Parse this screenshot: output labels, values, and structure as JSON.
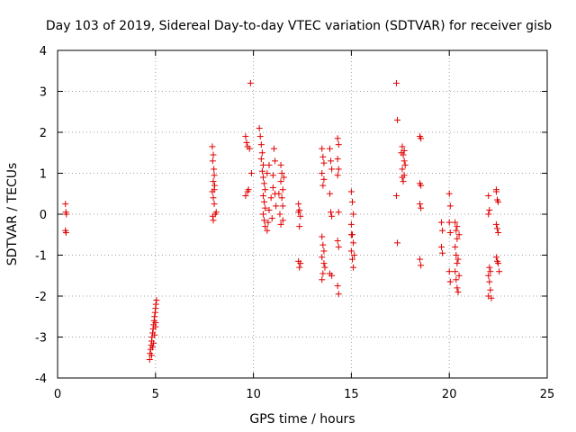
{
  "chart_data": {
    "type": "scatter",
    "title": "Day 103 of 2019, Sidereal Day-to-day VTEC variation (SDTVAR) for receiver gisb",
    "xlabel": "GPS time / hours",
    "ylabel": "SDTVAR / TECUs",
    "xlim": [
      0,
      25
    ],
    "ylim": [
      -4,
      4
    ],
    "xticks": [
      0,
      5,
      10,
      15,
      20,
      25
    ],
    "yticks": [
      -4,
      -3,
      -2,
      -1,
      0,
      1,
      2,
      3,
      4
    ],
    "grid": true,
    "marker": "+",
    "colors": {
      "points": "#e00000",
      "axis": "#000000",
      "grid": "#a0a0a0"
    },
    "series": [
      {
        "name": "SDTVAR",
        "points": [
          [
            0.4,
            0.25
          ],
          [
            0.42,
            0.05
          ],
          [
            0.45,
            0.0
          ],
          [
            0.4,
            -0.4
          ],
          [
            0.43,
            -0.45
          ],
          [
            4.7,
            -3.55
          ],
          [
            4.72,
            -3.4
          ],
          [
            4.75,
            -3.3
          ],
          [
            4.78,
            -3.2
          ],
          [
            4.8,
            -3.1
          ],
          [
            4.82,
            -3.0
          ],
          [
            4.85,
            -2.9
          ],
          [
            4.88,
            -2.8
          ],
          [
            4.9,
            -2.7
          ],
          [
            4.93,
            -2.6
          ],
          [
            4.95,
            -2.5
          ],
          [
            4.98,
            -2.4
          ],
          [
            5.0,
            -2.3
          ],
          [
            5.02,
            -2.2
          ],
          [
            5.05,
            -2.1
          ],
          [
            4.85,
            -3.25
          ],
          [
            4.9,
            -3.15
          ],
          [
            4.95,
            -2.95
          ],
          [
            5.0,
            -2.65
          ],
          [
            4.8,
            -3.45
          ],
          [
            5.0,
            -2.75
          ],
          [
            7.9,
            1.65
          ],
          [
            7.95,
            1.45
          ],
          [
            7.92,
            1.3
          ],
          [
            7.98,
            1.1
          ],
          [
            8.0,
            0.95
          ],
          [
            7.95,
            0.8
          ],
          [
            8.02,
            0.7
          ],
          [
            7.9,
            0.55
          ],
          [
            7.95,
            0.4
          ],
          [
            8.0,
            0.25
          ],
          [
            8.05,
            0.0
          ],
          [
            7.92,
            -0.05
          ],
          [
            7.95,
            -0.15
          ],
          [
            8.1,
            0.05
          ],
          [
            8.0,
            0.6
          ],
          [
            9.6,
            1.9
          ],
          [
            9.65,
            1.75
          ],
          [
            9.7,
            1.65
          ],
          [
            9.8,
            1.6
          ],
          [
            9.85,
            3.2
          ],
          [
            9.9,
            1.0
          ],
          [
            9.7,
            0.55
          ],
          [
            9.6,
            0.45
          ],
          [
            9.75,
            0.6
          ],
          [
            10.3,
            2.1
          ],
          [
            10.35,
            1.9
          ],
          [
            10.4,
            1.7
          ],
          [
            10.45,
            1.5
          ],
          [
            10.4,
            1.35
          ],
          [
            10.5,
            1.2
          ],
          [
            10.45,
            1.05
          ],
          [
            10.5,
            0.9
          ],
          [
            10.55,
            0.75
          ],
          [
            10.6,
            0.6
          ],
          [
            10.5,
            0.45
          ],
          [
            10.55,
            0.3
          ],
          [
            10.6,
            0.15
          ],
          [
            10.5,
            0.0
          ],
          [
            10.55,
            -0.15
          ],
          [
            10.6,
            -0.3
          ],
          [
            10.7,
            -0.4
          ],
          [
            10.75,
            -0.2
          ],
          [
            10.8,
            0.1
          ],
          [
            10.9,
            0.4
          ],
          [
            11.0,
            0.65
          ],
          [
            11.05,
            1.6
          ],
          [
            11.1,
            1.3
          ],
          [
            11.0,
            0.95
          ],
          [
            11.1,
            0.5
          ],
          [
            11.15,
            0.2
          ],
          [
            10.95,
            -0.1
          ],
          [
            10.8,
            1.2
          ],
          [
            10.7,
            1.0
          ],
          [
            11.4,
            1.2
          ],
          [
            11.45,
            1.0
          ],
          [
            11.4,
            0.8
          ],
          [
            11.5,
            0.6
          ],
          [
            11.45,
            0.4
          ],
          [
            11.5,
            0.2
          ],
          [
            11.35,
            0.0
          ],
          [
            11.5,
            -0.15
          ],
          [
            11.4,
            -0.25
          ],
          [
            11.3,
            0.5
          ],
          [
            11.55,
            0.9
          ],
          [
            12.3,
            0.25
          ],
          [
            12.35,
            0.1
          ],
          [
            12.3,
            0.05
          ],
          [
            12.4,
            -0.05
          ],
          [
            12.35,
            -0.3
          ],
          [
            12.3,
            -1.15
          ],
          [
            12.35,
            -1.3
          ],
          [
            12.4,
            -1.2
          ],
          [
            13.5,
            1.6
          ],
          [
            13.55,
            1.4
          ],
          [
            13.6,
            1.25
          ],
          [
            13.5,
            1.0
          ],
          [
            13.6,
            0.85
          ],
          [
            13.55,
            0.7
          ],
          [
            13.5,
            -0.55
          ],
          [
            13.55,
            -0.75
          ],
          [
            13.6,
            -0.9
          ],
          [
            13.5,
            -1.05
          ],
          [
            13.6,
            -1.2
          ],
          [
            13.55,
            -1.45
          ],
          [
            13.5,
            -1.6
          ],
          [
            13.65,
            -1.3
          ],
          [
            13.9,
            1.6
          ],
          [
            13.95,
            1.3
          ],
          [
            14.0,
            1.1
          ],
          [
            13.9,
            0.5
          ],
          [
            13.95,
            0.05
          ],
          [
            14.0,
            -0.05
          ],
          [
            13.9,
            -1.45
          ],
          [
            14.0,
            -1.5
          ],
          [
            14.3,
            1.85
          ],
          [
            14.35,
            1.7
          ],
          [
            14.3,
            1.35
          ],
          [
            14.35,
            1.1
          ],
          [
            14.3,
            0.95
          ],
          [
            14.35,
            0.05
          ],
          [
            14.3,
            -0.65
          ],
          [
            14.35,
            -0.8
          ],
          [
            14.3,
            -1.75
          ],
          [
            14.35,
            -1.95
          ],
          [
            15.0,
            0.55
          ],
          [
            15.05,
            0.3
          ],
          [
            15.1,
            0.0
          ],
          [
            15.0,
            -0.25
          ],
          [
            15.05,
            -0.5
          ],
          [
            15.1,
            -0.7
          ],
          [
            15.0,
            -0.9
          ],
          [
            15.05,
            -1.1
          ],
          [
            15.1,
            -1.3
          ],
          [
            15.15,
            -1.0
          ],
          [
            15.0,
            -0.5
          ],
          [
            17.3,
            3.2
          ],
          [
            17.35,
            2.3
          ],
          [
            17.3,
            0.45
          ],
          [
            17.35,
            -0.7
          ],
          [
            17.6,
            1.65
          ],
          [
            17.65,
            1.45
          ],
          [
            17.7,
            1.3
          ],
          [
            17.6,
            1.1
          ],
          [
            17.7,
            0.95
          ],
          [
            17.65,
            0.8
          ],
          [
            17.55,
            1.5
          ],
          [
            17.75,
            1.2
          ],
          [
            17.6,
            0.9
          ],
          [
            17.7,
            1.55
          ],
          [
            18.5,
            1.9
          ],
          [
            18.55,
            1.85
          ],
          [
            18.5,
            0.75
          ],
          [
            18.55,
            0.7
          ],
          [
            18.5,
            0.25
          ],
          [
            18.55,
            0.15
          ],
          [
            18.5,
            -1.1
          ],
          [
            18.55,
            -1.25
          ],
          [
            19.6,
            -0.2
          ],
          [
            19.65,
            -0.4
          ],
          [
            19.6,
            -0.8
          ],
          [
            19.65,
            -0.95
          ],
          [
            20.0,
            0.5
          ],
          [
            20.05,
            0.2
          ],
          [
            20.0,
            -0.2
          ],
          [
            20.05,
            -0.45
          ],
          [
            20.0,
            -1.4
          ],
          [
            20.05,
            -1.65
          ],
          [
            20.3,
            -0.2
          ],
          [
            20.35,
            -0.4
          ],
          [
            20.4,
            -0.6
          ],
          [
            20.3,
            -0.8
          ],
          [
            20.35,
            -1.0
          ],
          [
            20.4,
            -1.2
          ],
          [
            20.3,
            -1.4
          ],
          [
            20.35,
            -1.6
          ],
          [
            20.4,
            -1.8
          ],
          [
            20.45,
            -1.9
          ],
          [
            20.5,
            -0.5
          ],
          [
            20.45,
            -1.1
          ],
          [
            20.4,
            -0.3
          ],
          [
            20.5,
            -1.5
          ],
          [
            22.0,
            0.45
          ],
          [
            22.05,
            0.1
          ],
          [
            22.0,
            0.0
          ],
          [
            22.05,
            -1.3
          ],
          [
            22.0,
            -1.5
          ],
          [
            22.05,
            -1.65
          ],
          [
            22.1,
            -1.85
          ],
          [
            22.0,
            -2.0
          ],
          [
            22.15,
            -2.05
          ],
          [
            22.1,
            -1.4
          ],
          [
            22.4,
            0.6
          ],
          [
            22.45,
            0.35
          ],
          [
            22.5,
            0.3
          ],
          [
            22.4,
            -0.25
          ],
          [
            22.45,
            -0.35
          ],
          [
            22.5,
            -0.45
          ],
          [
            22.4,
            -1.05
          ],
          [
            22.45,
            -1.15
          ],
          [
            22.5,
            -1.2
          ],
          [
            22.55,
            -1.4
          ],
          [
            22.4,
            0.55
          ]
        ]
      }
    ]
  }
}
